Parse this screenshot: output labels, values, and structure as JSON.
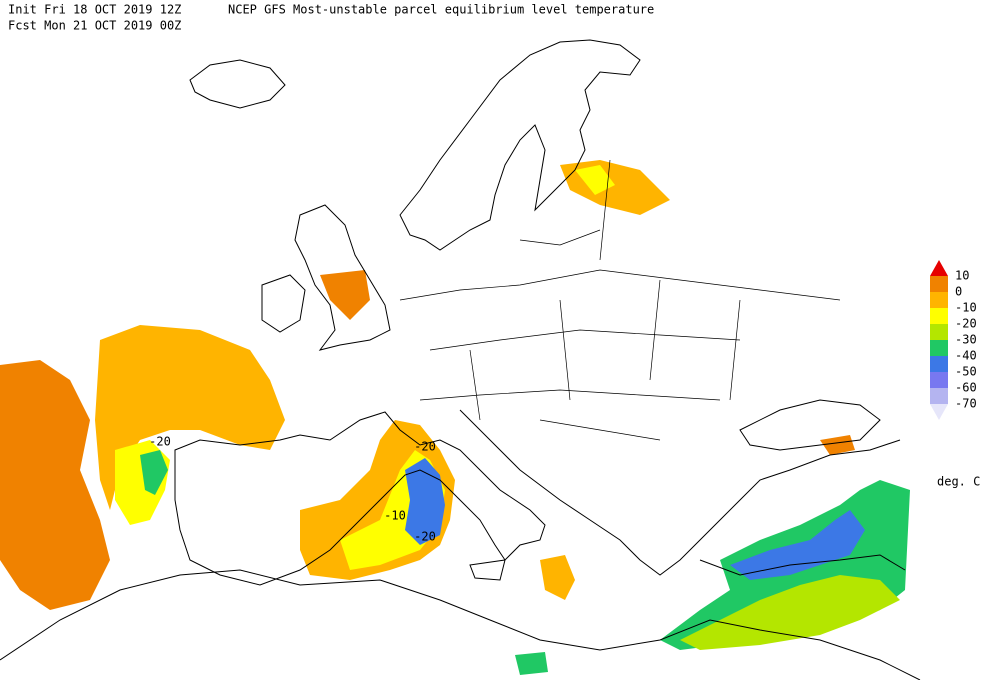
{
  "header": {
    "init": "Init  Fri 18 OCT 2019 12Z",
    "title": "NCEP GFS Most-unstable parcel equilibrium level temperature",
    "forecast": "Fcst Mon 21 OCT 2019 00Z"
  },
  "legend": {
    "labels": [
      10,
      0,
      -10,
      -20,
      -30,
      -40,
      -50,
      -60,
      -70
    ],
    "colors": [
      "#e60000",
      "#f08200",
      "#ffb400",
      "#ffff00",
      "#b4e600",
      "#20c864",
      "#3c78e6",
      "#7878f0",
      "#b4b4f0",
      "#e6e6fa"
    ],
    "unit": "deg. C"
  },
  "map": {
    "contour_labels": [
      "-20",
      "-20",
      "-10",
      "-20"
    ]
  }
}
